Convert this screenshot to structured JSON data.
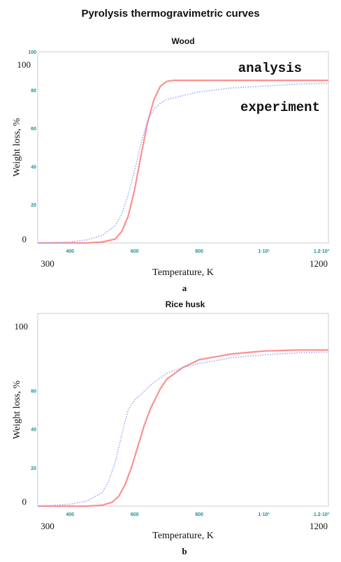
{
  "figure": {
    "title": "Pyrolysis thermogravimetric curves"
  },
  "colors": {
    "analysis": "#ff8f8f",
    "experiment": "#9aa6ff",
    "frame": "#cccccc",
    "tick_inner": "#1f8f8f"
  },
  "chart_data": [
    {
      "type": "line",
      "title": "Wood",
      "panel_label": "a",
      "xlabel": "Temperature, K",
      "ylabel": "Weight loss, %",
      "xlim": [
        300,
        1200
      ],
      "ylim": [
        0,
        100
      ],
      "grid": false,
      "outer_x_ticks": [
        "300",
        "1200"
      ],
      "outer_y_ticks": [
        "100",
        "0"
      ],
      "inner_x_ticks": [
        {
          "value": 400,
          "label": "400"
        },
        {
          "value": 600,
          "label": "600"
        },
        {
          "value": 800,
          "label": "800"
        },
        {
          "value": 1000,
          "label": "1·10³"
        },
        {
          "value": 1200,
          "label": "1.2·10³"
        }
      ],
      "inner_y_ticks": [
        {
          "value": 20,
          "label": "20"
        },
        {
          "value": 40,
          "label": "40"
        },
        {
          "value": 60,
          "label": "60"
        },
        {
          "value": 80,
          "label": "80"
        },
        {
          "value": 100,
          "label": "100"
        }
      ],
      "annotations": [
        "analysis",
        "experiment"
      ],
      "series": [
        {
          "style": "solid",
          "x": [
            300,
            450,
            500,
            540,
            560,
            580,
            600,
            620,
            640,
            660,
            680,
            700,
            720,
            760,
            800,
            900,
            1000,
            1100,
            1200
          ],
          "y": [
            0,
            0,
            0.5,
            2,
            6,
            14,
            28,
            46,
            63,
            75,
            82,
            84.5,
            85,
            85,
            85,
            85,
            85,
            85,
            85
          ]
        },
        {
          "style": "dotted",
          "x": [
            300,
            400,
            450,
            500,
            540,
            560,
            580,
            600,
            620,
            640,
            660,
            680,
            700,
            750,
            800,
            900,
            1000,
            1100,
            1200
          ],
          "y": [
            0,
            0.5,
            1.5,
            4,
            9,
            15,
            25,
            38,
            52,
            64,
            70,
            73,
            75,
            77,
            79,
            81,
            82,
            83,
            83.5
          ]
        }
      ]
    },
    {
      "type": "line",
      "title": "Rice husk",
      "panel_label": "b",
      "xlabel": "Temperature, K",
      "ylabel": "Weight loss, %",
      "xlim": [
        300,
        1200
      ],
      "ylim": [
        0,
        100
      ],
      "grid": false,
      "outer_x_ticks": [
        "300",
        "1200"
      ],
      "outer_y_ticks": [
        "100",
        "0"
      ],
      "inner_x_ticks": [
        {
          "value": 400,
          "label": "400"
        },
        {
          "value": 600,
          "label": "600"
        },
        {
          "value": 800,
          "label": "800"
        },
        {
          "value": 1000,
          "label": "1·10³"
        },
        {
          "value": 1200,
          "label": "1.2·10³"
        }
      ],
      "inner_y_ticks": [
        {
          "value": 20,
          "label": "20"
        },
        {
          "value": 40,
          "label": "40"
        },
        {
          "value": 60,
          "label": "60"
        }
      ],
      "annotations": [],
      "series": [
        {
          "style": "solid",
          "x": [
            300,
            450,
            500,
            530,
            550,
            570,
            590,
            610,
            630,
            650,
            680,
            700,
            750,
            800,
            900,
            1000,
            1100,
            1200
          ],
          "y": [
            0,
            0,
            0.5,
            2,
            5,
            11,
            20,
            31,
            42,
            51,
            61,
            66,
            72,
            76,
            79,
            80.5,
            81,
            81
          ]
        },
        {
          "style": "dotted",
          "x": [
            300,
            400,
            450,
            500,
            520,
            540,
            560,
            580,
            600,
            620,
            650,
            700,
            750,
            800,
            900,
            1000,
            1100,
            1200
          ],
          "y": [
            0,
            1,
            2.5,
            7,
            13,
            23,
            37,
            50,
            55,
            58,
            63,
            69,
            72,
            74,
            77,
            78.5,
            79.5,
            80
          ]
        }
      ]
    }
  ]
}
